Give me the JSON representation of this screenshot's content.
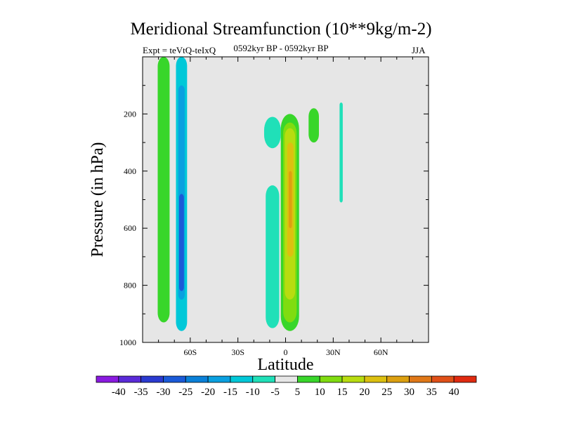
{
  "chart_data": {
    "type": "contour",
    "title": "Meridional Streamfunction (10**9kg/m-2)",
    "subtitle_left": "Expt = teVtQ-teIxQ",
    "subtitle_center": "0592kyr BP - 0592kyr BP",
    "subtitle_right": "JJA",
    "xlabel": "Latitude",
    "ylabel": "Pressure (in hPa)",
    "xlim": [
      -90,
      90
    ],
    "ylim": [
      1000,
      0
    ],
    "xticks": [
      {
        "value": -60,
        "label": "60S"
      },
      {
        "value": -30,
        "label": "30S"
      },
      {
        "value": 0,
        "label": "0"
      },
      {
        "value": 30,
        "label": "30N"
      },
      {
        "value": 60,
        "label": "60N"
      }
    ],
    "yticks": [
      {
        "value": 200,
        "label": "200"
      },
      {
        "value": 400,
        "label": "400"
      },
      {
        "value": 600,
        "label": "600"
      },
      {
        "value": 800,
        "label": "800"
      },
      {
        "value": 1000,
        "label": "1000"
      }
    ],
    "background_color": "#e6e6e6",
    "colorbar": {
      "labels": [
        "-40",
        "-35",
        "-30",
        "-25",
        "-20",
        "-15",
        "-10",
        "-5",
        "5",
        "10",
        "15",
        "20",
        "25",
        "30",
        "35",
        "40"
      ],
      "colors": [
        "#8a1ae0",
        "#5a2ad8",
        "#2a3ad0",
        "#1a5ad8",
        "#0a80d8",
        "#0aa0e0",
        "#00c8d8",
        "#20e0b8",
        "#e6e6e6",
        "#38d62a",
        "#80dc10",
        "#b8dc10",
        "#dcc010",
        "#dca010",
        "#e07818",
        "#e05018",
        "#e02a10"
      ]
    },
    "features": [
      {
        "level": 5,
        "x_range": [
          -80.5,
          -73
        ],
        "p_range": [
          0,
          930
        ],
        "color": "#38d62a"
      },
      {
        "level": -10,
        "x_range": [
          -69,
          -62
        ],
        "p_range": [
          0,
          960
        ],
        "color": "#00c8d8"
      },
      {
        "level": -20,
        "x_range": [
          -67.5,
          -63.5
        ],
        "p_range": [
          100,
          850
        ],
        "color": "#0aa0e0"
      },
      {
        "level": -25,
        "x_range": [
          -67,
          -64
        ],
        "p_range": [
          480,
          820
        ],
        "color": "#1a5ad8"
      },
      {
        "level": -5,
        "x_range": [
          -13.5,
          -3
        ],
        "p_range": [
          210,
          320
        ],
        "color": "#20e0b8"
      },
      {
        "level": -5,
        "x_range": [
          -12.5,
          -4
        ],
        "p_range": [
          450,
          950
        ],
        "color": "#20e0b8"
      },
      {
        "level": 5,
        "x_range": [
          -3,
          8.5
        ],
        "p_range": [
          200,
          960
        ],
        "color": "#38d62a"
      },
      {
        "level": 10,
        "x_range": [
          -1.5,
          7
        ],
        "p_range": [
          230,
          930
        ],
        "color": "#80dc10"
      },
      {
        "level": 15,
        "x_range": [
          -0.5,
          6
        ],
        "p_range": [
          250,
          850
        ],
        "color": "#b8dc10"
      },
      {
        "level": 20,
        "x_range": [
          1,
          5
        ],
        "p_range": [
          300,
          700
        ],
        "color": "#dcc010"
      },
      {
        "level": 25,
        "x_range": [
          2,
          4
        ],
        "p_range": [
          400,
          600
        ],
        "color": "#dca010"
      },
      {
        "level": 5,
        "x_range": [
          14.5,
          21
        ],
        "p_range": [
          180,
          300
        ],
        "color": "#38d62a"
      },
      {
        "level": -5,
        "x_range": [
          34,
          36
        ],
        "p_range": [
          160,
          510
        ],
        "color": "#20e0b8"
      }
    ]
  }
}
